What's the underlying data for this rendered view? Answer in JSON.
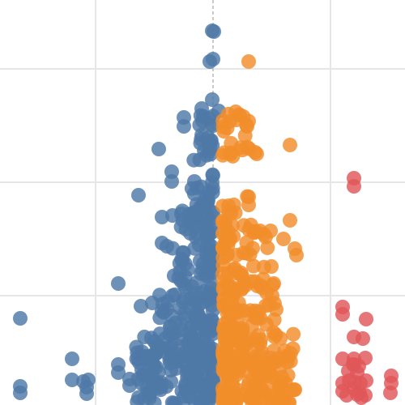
{
  "chart_data": {
    "type": "scatter",
    "title": "",
    "xlabel": "",
    "ylabel": "",
    "xlim": [
      -260,
      240
    ],
    "ylim": [
      0,
      500
    ],
    "grid": true,
    "x_gridlines": [
      -145,
      145
    ],
    "y_gridlines": [
      135,
      275,
      415
    ],
    "center_line_x": 0,
    "series_colors": [
      "#4e79a7",
      "#f28e2b",
      "#e15759"
    ],
    "series": [
      {
        "color": "#4e79a7",
        "generated_clusters": [
          {
            "y_range": [
              0,
              90
            ],
            "x_range": [
              -95,
              0
            ],
            "count": 180
          },
          {
            "y_range": [
              90,
              140
            ],
            "x_range": [
              -70,
              0
            ],
            "count": 55
          },
          {
            "y_range": [
              140,
              200
            ],
            "x_range": [
              -50,
              0
            ],
            "count": 45
          },
          {
            "y_range": [
              200,
              240
            ],
            "x_range": [
              -40,
              0
            ],
            "count": 30
          },
          {
            "y_range": [
              240,
              270
            ],
            "x_range": [
              -30,
              0
            ],
            "count": 18
          },
          {
            "y_range": [
              270,
              330
            ],
            "x_range": [
              -25,
              0
            ],
            "count": 16
          },
          {
            "y_range": [
              330,
              360
            ],
            "x_range": [
              -20,
              0
            ],
            "count": 10
          }
        ],
        "points": [
          {
            "x": -238,
            "y": 107
          },
          {
            "x": -238,
            "y": 23
          },
          {
            "x": -238,
            "y": 15
          },
          {
            "x": -174,
            "y": 57
          },
          {
            "x": -174,
            "y": 31
          },
          {
            "x": -160,
            "y": 29
          },
          {
            "x": -156,
            "y": 22
          },
          {
            "x": -156,
            "y": 14
          },
          {
            "x": -154,
            "y": 31
          },
          {
            "x": -117,
            "y": 50
          },
          {
            "x": -117,
            "y": 40
          },
          {
            "x": -103,
            "y": 32
          },
          {
            "x": -103,
            "y": 24
          },
          {
            "x": -117,
            "y": 150
          },
          {
            "x": -92,
            "y": 259
          },
          {
            "x": -67,
            "y": 316
          },
          {
            "x": -51,
            "y": 288
          },
          {
            "x": -51,
            "y": 276
          },
          {
            "x": -36,
            "y": 344
          },
          {
            "x": -36,
            "y": 355
          },
          {
            "x": -14,
            "y": 366
          },
          {
            "x": -50,
            "y": 234
          },
          {
            "x": -63,
            "y": 232
          },
          {
            "x": -63,
            "y": 200
          },
          {
            "x": -57,
            "y": 196
          },
          {
            "x": -23,
            "y": 276
          },
          {
            "x": -22,
            "y": 232
          },
          {
            "x": -75,
            "y": 126
          },
          {
            "x": -89,
            "y": 122
          },
          {
            "x": -50,
            "y": 135
          },
          {
            "x": -28,
            "y": 212
          },
          {
            "x": -39,
            "y": 236
          },
          {
            "x": 1,
            "y": 461
          },
          {
            "x": -1,
            "y": 462
          },
          {
            "x": -4,
            "y": 424
          },
          {
            "x": 0,
            "y": 427
          },
          {
            "x": -1,
            "y": 377
          },
          {
            "x": 7,
            "y": 363
          }
        ]
      },
      {
        "color": "#f28e2b",
        "generated_clusters": [
          {
            "y_range": [
              0,
              90
            ],
            "x_range": [
              12,
              105
            ],
            "count": 170
          },
          {
            "y_range": [
              90,
              150
            ],
            "x_range": [
              12,
              80
            ],
            "count": 55
          },
          {
            "y_range": [
              150,
              220
            ],
            "x_range": [
              12,
              70
            ],
            "count": 45
          },
          {
            "y_range": [
              220,
              260
            ],
            "x_range": [
              12,
              50
            ],
            "count": 14
          },
          {
            "y_range": [
              300,
              360
            ],
            "x_range": [
              12,
              45
            ],
            "count": 22
          }
        ],
        "points": [
          {
            "x": 44,
            "y": 424
          },
          {
            "x": 95,
            "y": 321
          },
          {
            "x": 28,
            "y": 362
          },
          {
            "x": 29,
            "y": 352
          },
          {
            "x": 42,
            "y": 344
          },
          {
            "x": 54,
            "y": 310
          },
          {
            "x": 44,
            "y": 257
          },
          {
            "x": 44,
            "y": 247
          },
          {
            "x": 95,
            "y": 228
          },
          {
            "x": 87,
            "y": 205
          },
          {
            "x": 101,
            "y": 193
          },
          {
            "x": 103,
            "y": 185
          },
          {
            "x": 72,
            "y": 171
          },
          {
            "x": 73,
            "y": 135
          },
          {
            "x": 78,
            "y": 118
          },
          {
            "x": 75,
            "y": 150
          },
          {
            "x": 71,
            "y": 215
          },
          {
            "x": 58,
            "y": 215
          },
          {
            "x": 52,
            "y": 312
          }
        ]
      },
      {
        "color": "#e15759",
        "points": [
          {
            "x": 174,
            "y": 280
          },
          {
            "x": 174,
            "y": 270
          },
          {
            "x": 160,
            "y": 121
          },
          {
            "x": 160,
            "y": 112
          },
          {
            "x": 189,
            "y": 106
          },
          {
            "x": 174,
            "y": 84
          },
          {
            "x": 185,
            "y": 82
          },
          {
            "x": 188,
            "y": 58
          },
          {
            "x": 174,
            "y": 57
          },
          {
            "x": 174,
            "y": 50
          },
          {
            "x": 160,
            "y": 57
          },
          {
            "x": 178,
            "y": 40
          },
          {
            "x": 160,
            "y": 27
          },
          {
            "x": 168,
            "y": 30
          },
          {
            "x": 175,
            "y": 28
          },
          {
            "x": 182,
            "y": 27
          },
          {
            "x": 189,
            "y": 30
          },
          {
            "x": 160,
            "y": 17
          },
          {
            "x": 174,
            "y": 20
          },
          {
            "x": 181,
            "y": 15
          },
          {
            "x": 188,
            "y": 12
          },
          {
            "x": 220,
            "y": 36
          },
          {
            "x": 220,
            "y": 27
          },
          {
            "x": 219,
            "y": 15
          },
          {
            "x": 183,
            "y": 9
          },
          {
            "x": 165,
            "y": 12
          },
          {
            "x": 173,
            "y": 50
          },
          {
            "x": 180,
            "y": 48
          },
          {
            "x": 167,
            "y": 42
          },
          {
            "x": 178,
            "y": 13
          }
        ]
      }
    ]
  }
}
